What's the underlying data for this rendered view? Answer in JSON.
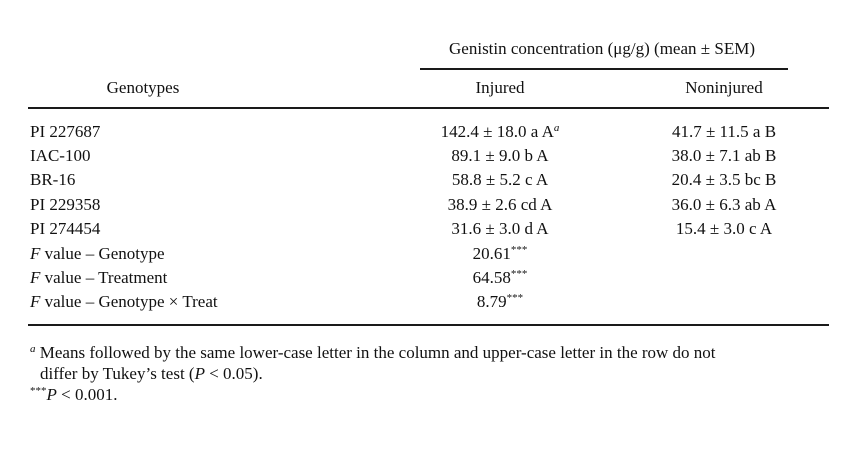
{
  "table": {
    "group_header": "Genistin concentration (μg/g) (mean ± SEM)",
    "col_genotypes": "Genotypes",
    "col_injured": "Injured",
    "col_noninjured": "Noninjured",
    "rows": [
      {
        "genotype": "PI 227687",
        "injured": "142.4 ± 18.0 a A",
        "injured_sup": "a",
        "noninjured": "41.7 ± 11.5 a B"
      },
      {
        "genotype": "IAC-100",
        "injured": "89.1 ± 9.0 b A",
        "noninjured": "38.0 ± 7.1 ab B"
      },
      {
        "genotype": "BR-16",
        "injured": "58.8 ± 5.2 c A",
        "noninjured": "20.4 ± 3.5 bc B"
      },
      {
        "genotype": "PI 229358",
        "injured": "38.9 ± 2.6 cd A",
        "noninjured": "36.0 ± 6.3 ab A"
      },
      {
        "genotype": "PI 274454",
        "injured": "31.6 ± 3.0 d A",
        "noninjured": "15.4 ± 3.0 c A"
      }
    ],
    "fvalues": [
      {
        "label_f": "F",
        "label_rest": " value – Genotype",
        "value": "20.61",
        "sup": "***"
      },
      {
        "label_f": "F",
        "label_rest": " value – Treatment",
        "value": "64.58",
        "sup": "***"
      },
      {
        "label_f": "F",
        "label_rest": " value – Genotype × Treat",
        "value": "8.79",
        "sup": "***"
      }
    ]
  },
  "footnotes": {
    "note_a_marker": "a",
    "note_a_line1": " Means followed by the same lower-case letter in the column and upper-case letter in the row do not",
    "note_a_line2_pre": "differ by Tukey’s test (",
    "note_a_line2_p": "P",
    "note_a_line2_post": " < 0.05).",
    "note_b_marker": "***",
    "note_b_p": "P",
    "note_b_post": " < 0.001."
  }
}
